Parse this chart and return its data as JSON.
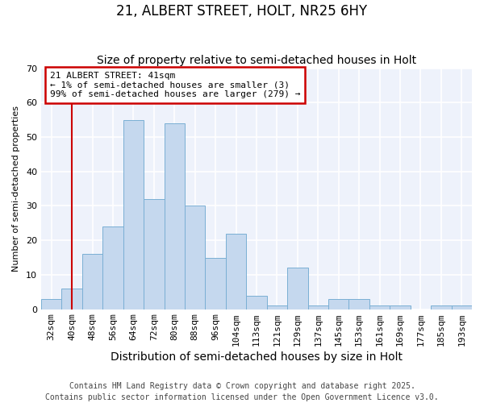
{
  "title": "21, ALBERT STREET, HOLT, NR25 6HY",
  "subtitle": "Size of property relative to semi-detached houses in Holt",
  "xlabel": "Distribution of semi-detached houses by size in Holt",
  "ylabel": "Number of semi-detached properties",
  "bar_labels": [
    "32sqm",
    "40sqm",
    "48sqm",
    "56sqm",
    "64sqm",
    "72sqm",
    "80sqm",
    "88sqm",
    "96sqm",
    "104sqm",
    "113sqm",
    "121sqm",
    "129sqm",
    "137sqm",
    "145sqm",
    "153sqm",
    "161sqm",
    "169sqm",
    "177sqm",
    "185sqm",
    "193sqm"
  ],
  "bar_values": [
    3,
    6,
    16,
    24,
    55,
    32,
    54,
    30,
    15,
    22,
    4,
    1,
    12,
    1,
    3,
    3,
    1,
    1,
    0,
    1,
    1
  ],
  "bar_color": "#c5d8ee",
  "bar_edge_color": "#7aafd4",
  "bar_edge_width": 0.7,
  "annotation_title": "21 ALBERT STREET: 41sqm",
  "annotation_line1": "← 1% of semi-detached houses are smaller (3)",
  "annotation_line2": "99% of semi-detached houses are larger (279) →",
  "annotation_border_color": "#cc0000",
  "vline_color": "#cc0000",
  "ylim": [
    0,
    70
  ],
  "yticks": [
    0,
    10,
    20,
    30,
    40,
    50,
    60,
    70
  ],
  "bg_color": "#ffffff",
  "plot_bg_color": "#eef2fb",
  "grid_color": "#ffffff",
  "footer_line1": "Contains HM Land Registry data © Crown copyright and database right 2025.",
  "footer_line2": "Contains public sector information licensed under the Open Government Licence v3.0.",
  "title_fontsize": 12,
  "subtitle_fontsize": 10,
  "xlabel_fontsize": 10,
  "ylabel_fontsize": 8,
  "tick_fontsize": 8,
  "annotation_fontsize": 8,
  "footer_fontsize": 7
}
